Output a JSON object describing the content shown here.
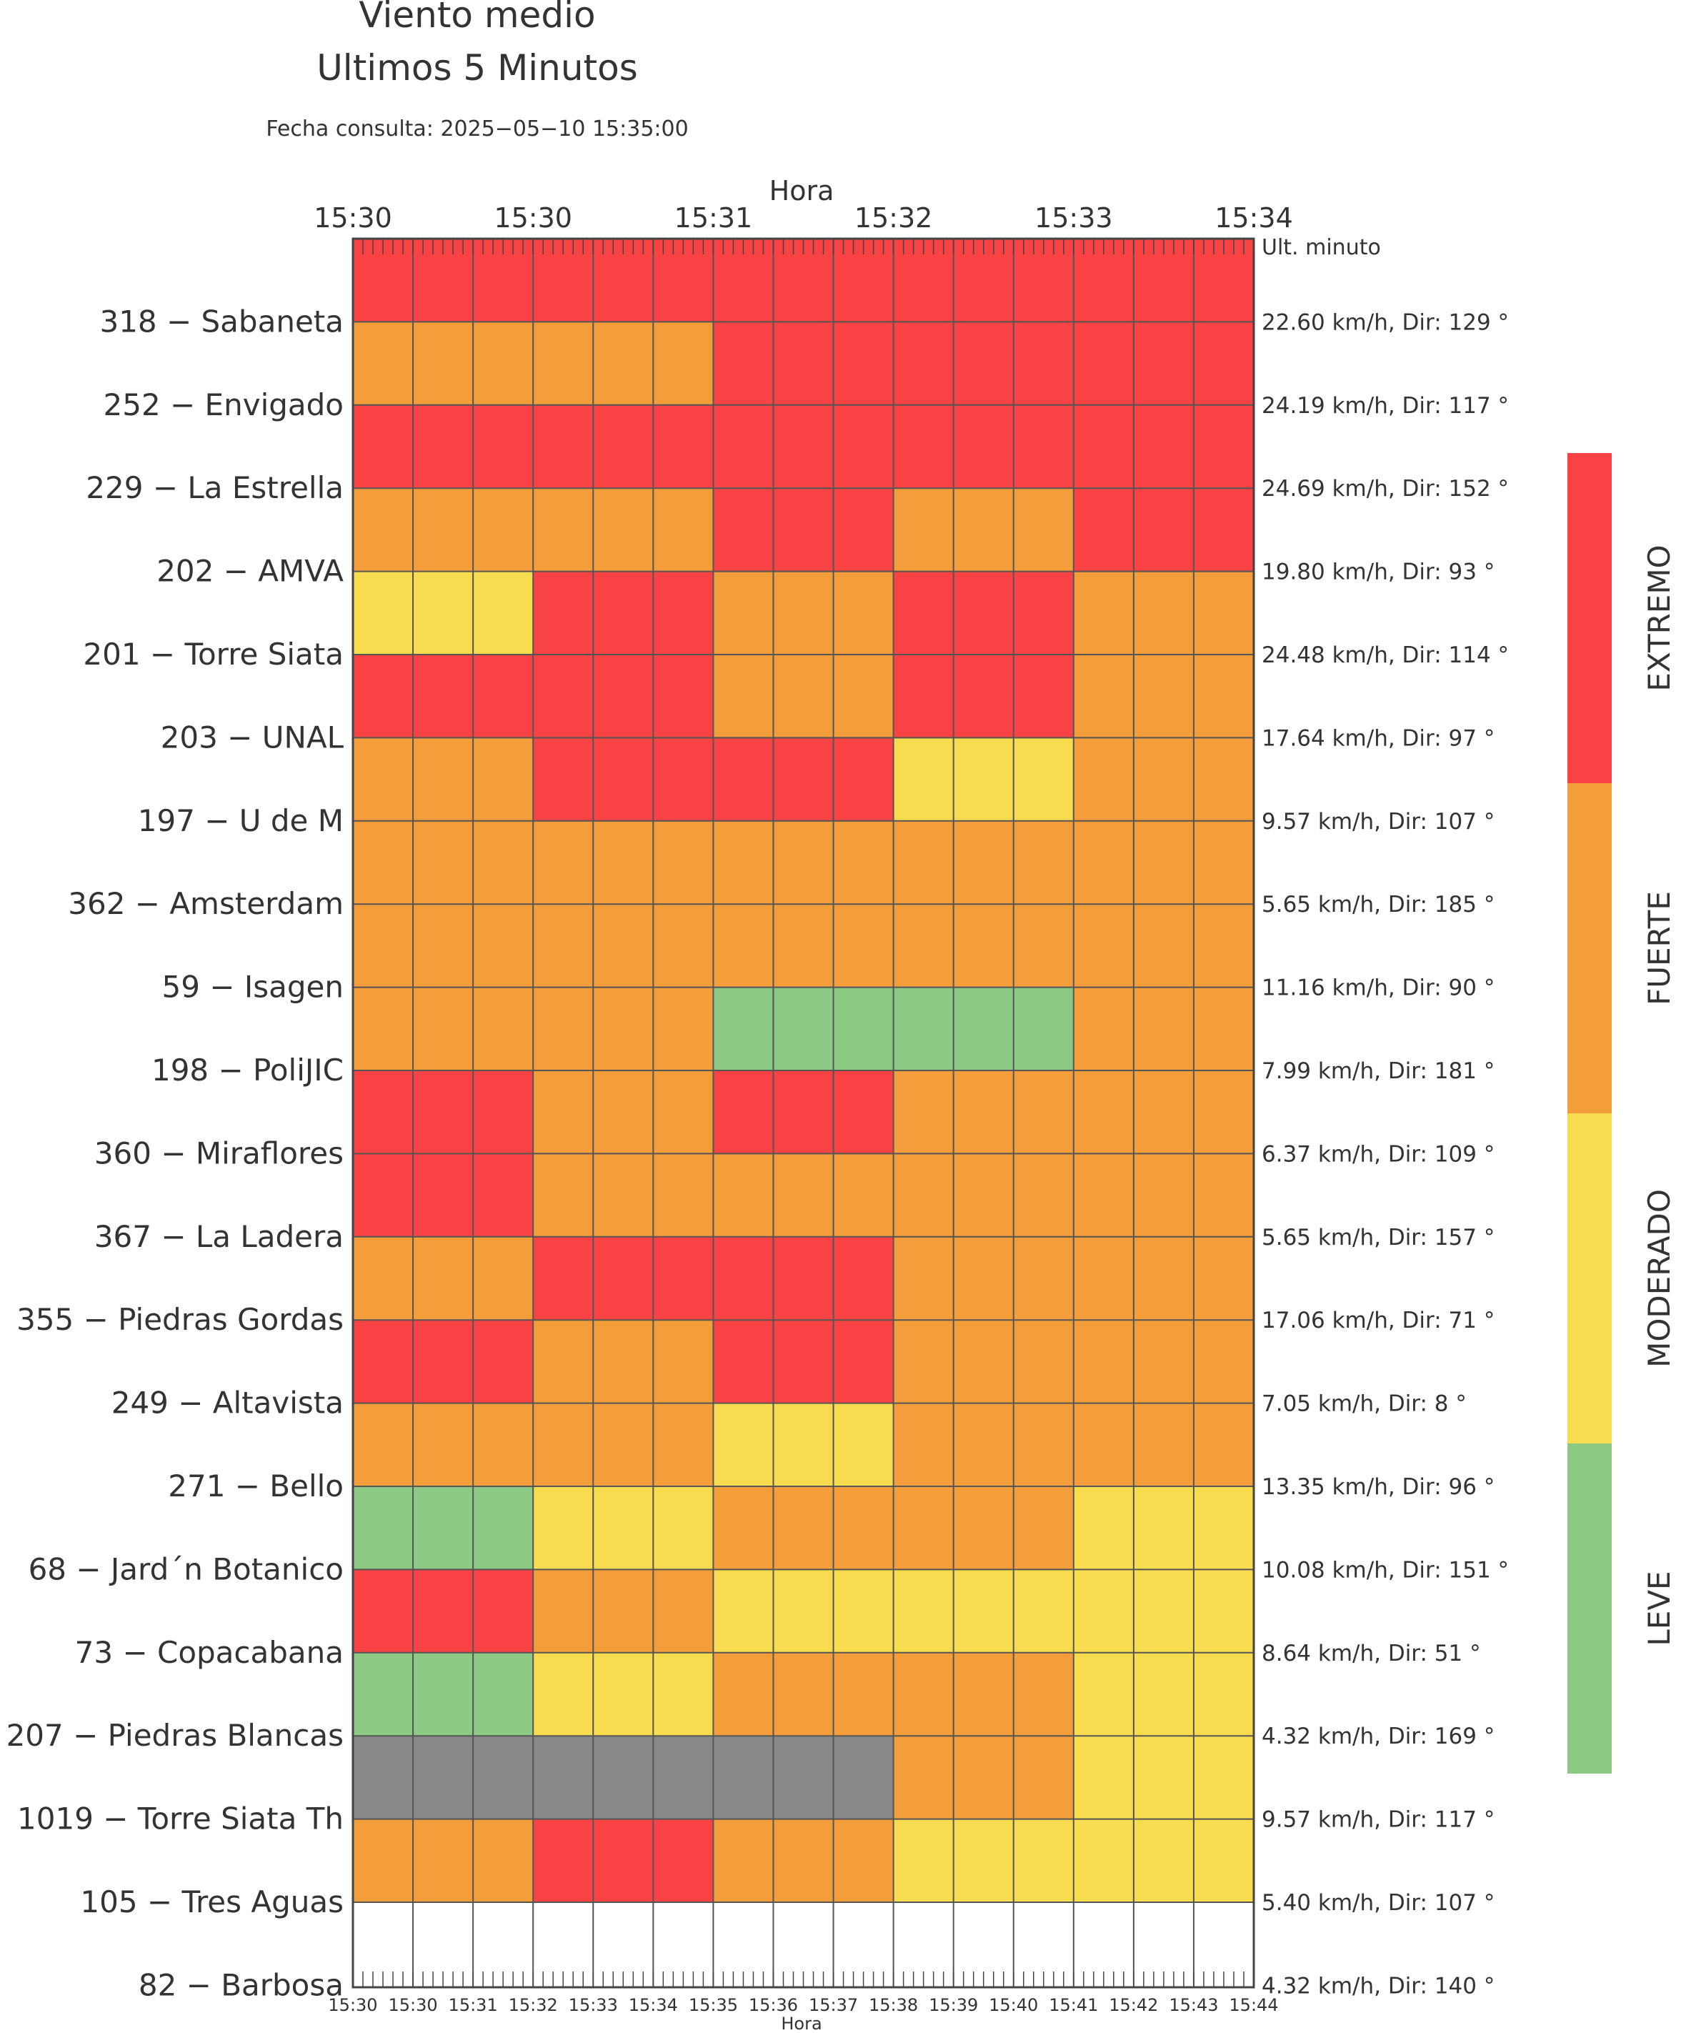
{
  "chart_data": {
    "type": "heatmap",
    "title": "Viento medio",
    "subtitle": "Ultimos 5 Minutos",
    "query_date": "Fecha consulta: 2025−05−10 15:35:00",
    "top_axis_label": "Hora",
    "bottom_axis_label": "Hora",
    "top_tick_labels": [
      "15:30",
      "15:30",
      "15:31",
      "15:32",
      "15:33",
      "15:34"
    ],
    "bottom_tick_labels": [
      "15:30",
      "15:30",
      "15:31",
      "15:32",
      "15:33",
      "15:34",
      "15:35",
      "15:36",
      "15:37",
      "15:38",
      "15:39",
      "15:40",
      "15:41",
      "15:42",
      "15:43",
      "15:44"
    ],
    "right_header": "Ult. minuto",
    "levels": [
      "LEVE",
      "MODERADO",
      "FUERTE",
      "EXTREMO"
    ],
    "level_colors": {
      "LEVE": "#8bc985",
      "MODERADO": "#f7dc4f",
      "FUERTE": "#f39d3b",
      "EXTREMO": "#f94244",
      "SIN_DATO": "#888888"
    },
    "codes": "L=LEVE, M=MODERADO, F=FUERTE, E=EXTREMO, N=SIN_DATO",
    "stations": [
      {
        "label": "318 − Sabaneta",
        "last_minute": "22.60 km/h, Dir: 129 °",
        "values": [
          "E",
          "E",
          "E",
          "E",
          "E",
          "E",
          "E",
          "E",
          "E",
          "E",
          "E",
          "E",
          "E",
          "E",
          "E"
        ]
      },
      {
        "label": "252 − Envigado",
        "last_minute": "24.19 km/h, Dir: 117 °",
        "values": [
          "F",
          "F",
          "F",
          "F",
          "F",
          "F",
          "E",
          "E",
          "E",
          "E",
          "E",
          "E",
          "E",
          "E",
          "E"
        ]
      },
      {
        "label": "229 − La Estrella",
        "last_minute": "24.69 km/h, Dir: 152 °",
        "values": [
          "E",
          "E",
          "E",
          "E",
          "E",
          "E",
          "E",
          "E",
          "E",
          "E",
          "E",
          "E",
          "E",
          "E",
          "E"
        ]
      },
      {
        "label": "202 − AMVA",
        "last_minute": "19.80 km/h, Dir: 93 °",
        "values": [
          "F",
          "F",
          "F",
          "F",
          "F",
          "F",
          "E",
          "E",
          "E",
          "F",
          "F",
          "F",
          "E",
          "E",
          "E"
        ]
      },
      {
        "label": "201 − Torre Siata",
        "last_minute": "24.48 km/h, Dir: 114 °",
        "values": [
          "M",
          "M",
          "M",
          "E",
          "E",
          "E",
          "F",
          "F",
          "F",
          "E",
          "E",
          "E",
          "F",
          "F",
          "F"
        ]
      },
      {
        "label": "203 − UNAL",
        "last_minute": "17.64 km/h, Dir: 97 °",
        "values": [
          "E",
          "E",
          "E",
          "E",
          "E",
          "E",
          "F",
          "F",
          "F",
          "E",
          "E",
          "E",
          "F",
          "F",
          "F"
        ]
      },
      {
        "label": "197 − U de M",
        "last_minute": "9.57 km/h, Dir: 107 °",
        "values": [
          "F",
          "F",
          "F",
          "E",
          "E",
          "E",
          "E",
          "E",
          "E",
          "M",
          "M",
          "M",
          "F",
          "F",
          "F"
        ]
      },
      {
        "label": "362 − Amsterdam",
        "last_minute": "5.65 km/h, Dir: 185 °",
        "values": [
          "F",
          "F",
          "F",
          "F",
          "F",
          "F",
          "F",
          "F",
          "F",
          "F",
          "F",
          "F",
          "F",
          "F",
          "F"
        ]
      },
      {
        "label": "59 − Isagen",
        "last_minute": "11.16 km/h, Dir: 90 °",
        "values": [
          "F",
          "F",
          "F",
          "F",
          "F",
          "F",
          "F",
          "F",
          "F",
          "F",
          "F",
          "F",
          "F",
          "F",
          "F"
        ]
      },
      {
        "label": "198 − PoliJIC",
        "last_minute": "7.99 km/h, Dir: 181 °",
        "values": [
          "F",
          "F",
          "F",
          "F",
          "F",
          "F",
          "L",
          "L",
          "L",
          "L",
          "L",
          "L",
          "F",
          "F",
          "F"
        ]
      },
      {
        "label": "360 − Miraflores",
        "last_minute": "6.37 km/h, Dir: 109 °",
        "values": [
          "E",
          "E",
          "E",
          "F",
          "F",
          "F",
          "E",
          "E",
          "E",
          "F",
          "F",
          "F",
          "F",
          "F",
          "F"
        ]
      },
      {
        "label": "367 − La Ladera",
        "last_minute": "5.65 km/h, Dir: 157 °",
        "values": [
          "E",
          "E",
          "E",
          "F",
          "F",
          "F",
          "F",
          "F",
          "F",
          "F",
          "F",
          "F",
          "F",
          "F",
          "F"
        ]
      },
      {
        "label": "355 − Piedras Gordas",
        "last_minute": "17.06 km/h, Dir: 71 °",
        "values": [
          "F",
          "F",
          "F",
          "E",
          "E",
          "E",
          "E",
          "E",
          "E",
          "F",
          "F",
          "F",
          "F",
          "F",
          "F"
        ]
      },
      {
        "label": "249 − Altavista",
        "last_minute": "7.05 km/h, Dir: 8 °",
        "values": [
          "E",
          "E",
          "E",
          "F",
          "F",
          "F",
          "E",
          "E",
          "E",
          "F",
          "F",
          "F",
          "F",
          "F",
          "F"
        ]
      },
      {
        "label": "271 − Bello",
        "last_minute": "13.35 km/h, Dir: 96 °",
        "values": [
          "F",
          "F",
          "F",
          "F",
          "F",
          "F",
          "M",
          "M",
          "M",
          "F",
          "F",
          "F",
          "F",
          "F",
          "F"
        ]
      },
      {
        "label": "68 − Jard´n Botanico",
        "last_minute": "10.08 km/h, Dir: 151 °",
        "values": [
          "L",
          "L",
          "L",
          "M",
          "M",
          "M",
          "F",
          "F",
          "F",
          "F",
          "F",
          "F",
          "M",
          "M",
          "M"
        ]
      },
      {
        "label": "73 − Copacabana",
        "last_minute": "8.64 km/h, Dir: 51 °",
        "values": [
          "E",
          "E",
          "E",
          "F",
          "F",
          "F",
          "M",
          "M",
          "M",
          "M",
          "M",
          "M",
          "M",
          "M",
          "M"
        ]
      },
      {
        "label": "207 − Piedras Blancas",
        "last_minute": "4.32 km/h, Dir: 169 °",
        "values": [
          "L",
          "L",
          "L",
          "M",
          "M",
          "M",
          "F",
          "F",
          "F",
          "F",
          "F",
          "F",
          "M",
          "M",
          "M"
        ]
      },
      {
        "label": "1019 − Torre Siata Th",
        "last_minute": "9.57 km/h, Dir: 117 °",
        "values": [
          "N",
          "N",
          "N",
          "N",
          "N",
          "N",
          "N",
          "N",
          "N",
          "F",
          "F",
          "F",
          "M",
          "M",
          "M"
        ]
      },
      {
        "label": "105 − Tres Aguas",
        "last_minute": "5.40 km/h, Dir: 107 °",
        "values": [
          "F",
          "F",
          "F",
          "E",
          "E",
          "E",
          "F",
          "F",
          "F",
          "M",
          "M",
          "M",
          "M",
          "M",
          "M"
        ]
      },
      {
        "label": "82 − Barbosa",
        "last_minute": "4.32 km/h, Dir: 140 °",
        "values": []
      }
    ]
  }
}
